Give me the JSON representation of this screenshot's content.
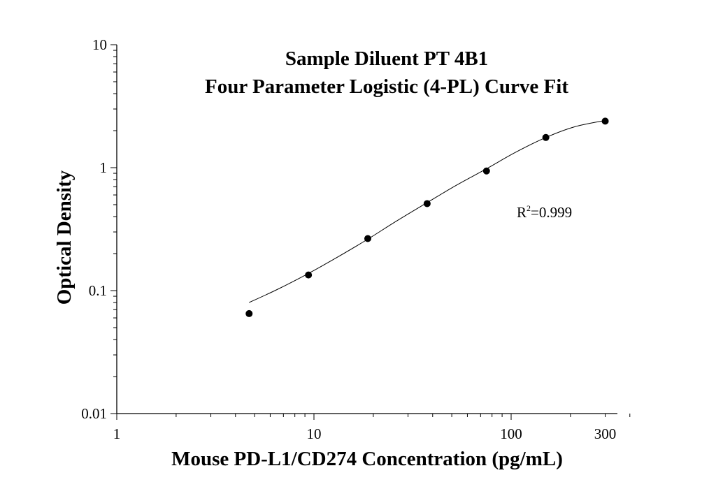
{
  "chart_data": {
    "type": "scatter",
    "title": [
      "Sample Diluent PT 4B1",
      "Four Parameter Logistic (4-PL) Curve Fit"
    ],
    "xlabel": "Mouse PD-L1/CD274 Concentration (pg/mL)",
    "ylabel": "Optical Density",
    "x_scale": "log",
    "y_scale": "log",
    "xlim": [
      1,
      400
    ],
    "ylim": [
      0.01,
      10
    ],
    "x_ticks": [
      {
        "value": 1,
        "label": "1"
      },
      {
        "value": 10,
        "label": "10"
      },
      {
        "value": 100,
        "label": "100"
      },
      {
        "value": 300,
        "label": "300"
      }
    ],
    "y_ticks": [
      {
        "value": 0.01,
        "label": "0.01"
      },
      {
        "value": 0.1,
        "label": "0.1"
      },
      {
        "value": 1,
        "label": "1"
      },
      {
        "value": 10,
        "label": "10"
      }
    ],
    "points": {
      "x": [
        4.69,
        9.38,
        18.75,
        37.5,
        75,
        150,
        300
      ],
      "y": [
        0.065,
        0.134,
        0.265,
        0.51,
        0.94,
        1.76,
        2.39
      ]
    },
    "fit_curve": {
      "type": "4PL",
      "x": [
        4.69,
        6.5,
        9.38,
        13,
        18.75,
        26,
        37.5,
        52,
        75,
        105,
        150,
        210,
        300
      ],
      "y": [
        0.08,
        0.102,
        0.138,
        0.185,
        0.262,
        0.365,
        0.52,
        0.71,
        0.98,
        1.33,
        1.76,
        2.15,
        2.42
      ]
    },
    "annotation": {
      "text_base": "R",
      "superscript": "2",
      "text_rest": "=0.999"
    },
    "grid": false,
    "legend": false,
    "colors": {
      "marker": "#000000",
      "line": "#000000",
      "axis": "#000000"
    }
  }
}
